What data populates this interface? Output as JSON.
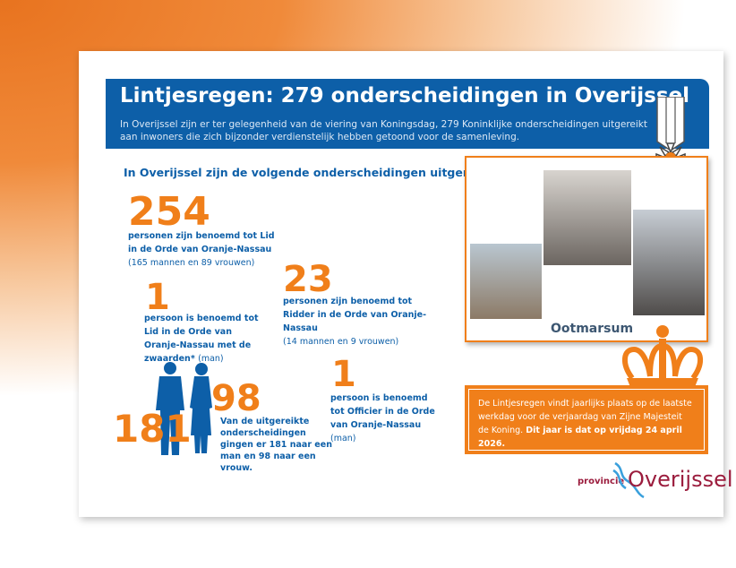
{
  "header": {
    "title": "Lintjesregen: 279 onderscheidingen in Overijssel",
    "intro": "In Overijssel zijn er ter gelegenheid van de viering van Koningsdag, 279 Koninklijke onderscheidingen uitgereikt aan inwoners die zich bijzonder verdienstelijk hebben getoond voor de samenleving."
  },
  "subtitle": "In Overijssel zijn de volgende onderscheidingen uitgereikt:",
  "stats": [
    {
      "number": "254",
      "text": "personen zijn benoemd tot Lid in de Orde van Oranje-Nassau",
      "detail": "(165 mannen en 89 vrouwen)"
    },
    {
      "number": "23",
      "text": "personen zijn benoemd tot Ridder in de Orde van Oranje-Nassau",
      "detail": "(14 mannen en 9 vrouwen)"
    },
    {
      "number": "1",
      "text": "persoon is benoemd tot Lid in de Orde van Oranje-Nassau met de zwaarden*",
      "detail": "(man)"
    },
    {
      "number": "1",
      "text": "persoon is benoemd tot Officier in de Orde van Oranje-Nassau",
      "detail": "(man)"
    }
  ],
  "gender": {
    "men": "181",
    "women": "98",
    "text_a": "Van de uitgereikte onderscheidingen gingen er ",
    "men_bold": "181",
    "text_b": " naar een man en ",
    "women_bold": "98",
    "text_c": " naar een vrouw."
  },
  "photo": {
    "caption": "Ootmarsum"
  },
  "info": {
    "text": "De Lintjesregen vindt jaarlijks plaats op de laatste werkdag voor de verjaardag van Zijne Majesteit de Koning. ",
    "bold": "Dit jaar is dat op vrijdag 24 april 2026."
  },
  "logo": {
    "prefix": "provincie",
    "name": "Overijssel"
  },
  "colors": {
    "blue": "#0d5fa8",
    "orange": "#f07f1a",
    "logo": "#9b1c3d"
  }
}
